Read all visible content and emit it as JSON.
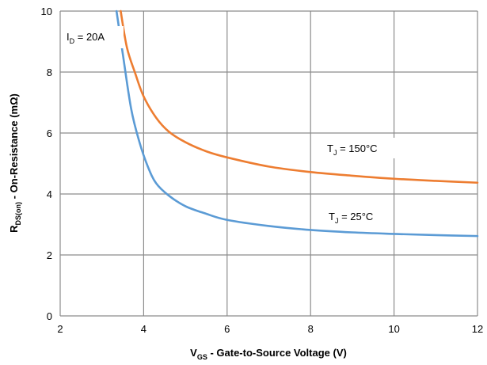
{
  "chart_data": {
    "type": "line",
    "xlabel": {
      "main": "V",
      "sub": "GS",
      "rest": " - Gate-to-Source Voltage (V)"
    },
    "ylabel": {
      "main": "R",
      "sub": "DS(on)",
      "rest": " - On-Resistance (mΩ)"
    },
    "xlim": [
      2,
      12
    ],
    "ylim": [
      0,
      10
    ],
    "xticks": [
      2,
      4,
      6,
      8,
      10,
      12
    ],
    "yticks": [
      0,
      2,
      4,
      6,
      8,
      10
    ],
    "grid": true,
    "annotations": {
      "id": {
        "main": "I",
        "sub": "D",
        "rest": " = 20A"
      },
      "hot": {
        "main": "T",
        "sub": "J",
        "rest": " = 150°C"
      },
      "cold": {
        "main": "T",
        "sub": "J",
        "rest": " = 25°C"
      }
    },
    "series": [
      {
        "name": "T_J = 150°C",
        "color": "#ED7D31",
        "x": [
          3.45,
          3.6,
          3.8,
          4.0,
          4.3,
          4.6,
          5.0,
          5.5,
          6.0,
          7.0,
          8.0,
          9.0,
          10.0,
          11.0,
          12.0
        ],
        "y": [
          10.0,
          8.8,
          7.95,
          7.2,
          6.5,
          6.05,
          5.7,
          5.4,
          5.2,
          4.9,
          4.72,
          4.6,
          4.5,
          4.43,
          4.37
        ]
      },
      {
        "name": "T_J = 25°C",
        "color": "#5B9BD5",
        "x": [
          3.35,
          3.5,
          3.7,
          3.9,
          4.1,
          4.3,
          4.6,
          5.0,
          5.5,
          6.0,
          7.0,
          8.0,
          9.0,
          10.0,
          11.0,
          12.0
        ],
        "y": [
          10.0,
          8.6,
          6.8,
          5.7,
          4.9,
          4.35,
          3.95,
          3.6,
          3.35,
          3.15,
          2.95,
          2.82,
          2.74,
          2.69,
          2.65,
          2.62
        ]
      }
    ]
  }
}
